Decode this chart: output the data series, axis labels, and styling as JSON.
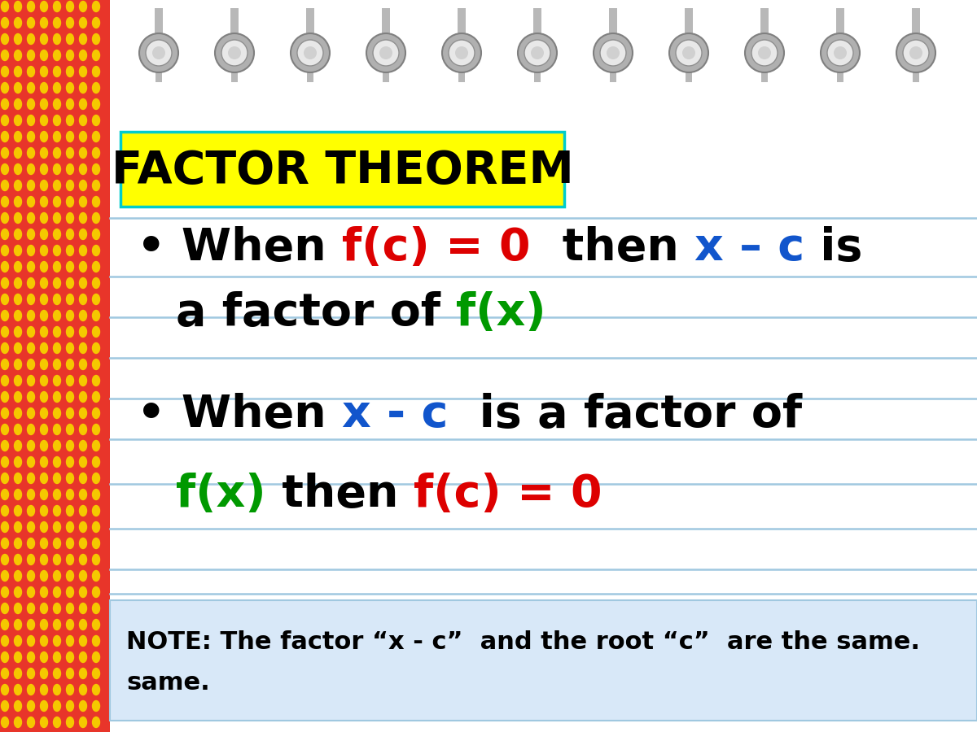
{
  "bg_color": "#ffffff",
  "red_stripe_color": "#e8352a",
  "title_bg": "#ffff00",
  "title_text": "FACTOR THEOREM",
  "title_border": "#00cccc",
  "line_color": "#a0c8e0",
  "note_bg": "#d8e8f8",
  "note_text": "NOTE: The factor “x - c”  and the root “c”  are the same.",
  "note_text2": "same.",
  "red": "#dd0000",
  "blue": "#1155cc",
  "green": "#009900",
  "black": "#000000"
}
